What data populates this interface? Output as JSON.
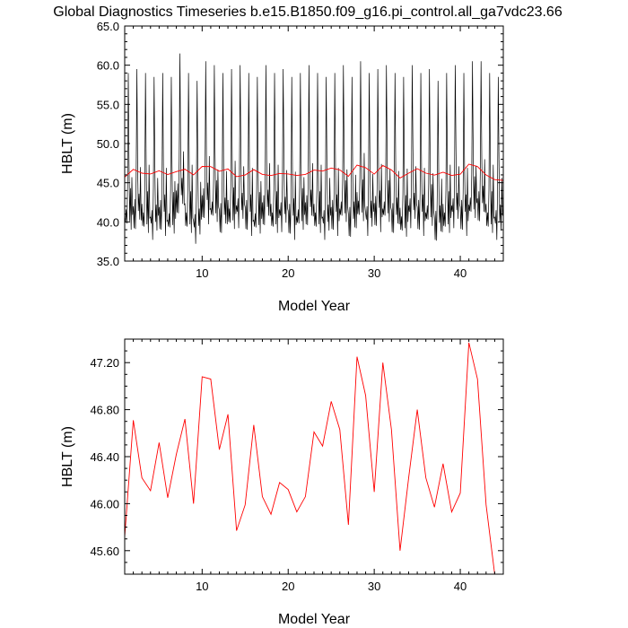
{
  "title": "Global Diagnostics Timeseries b.e15.B1850.f09_g16.pi_control.all_ga7vdc23.66",
  "colors": {
    "monthly": "#000000",
    "annual": "#ff0000",
    "frame": "#000000"
  },
  "chart_data": [
    {
      "type": "line",
      "xlabel": "Model Year",
      "ylabel": "HBLT (m)",
      "xlim": [
        1,
        45
      ],
      "ylim": [
        35.0,
        65.0
      ],
      "xticks": [
        10,
        20,
        30,
        40
      ],
      "xtick_labels": [
        "10",
        "20",
        "30",
        "40"
      ],
      "yticks": [
        35,
        40,
        45,
        50,
        55,
        60,
        65
      ],
      "ytick_labels": [
        "35.0",
        "40.0",
        "45.0",
        "50.0",
        "55.0",
        "60.0",
        "65.0"
      ],
      "grid": false,
      "series": [
        {
          "style": "monthly",
          "color": "#000000",
          "x_start": 1.0,
          "x_step": 0.08333,
          "seasonal_shape": [
            -3,
            -5,
            -2.5,
            -5.5,
            0,
            14.5,
            3,
            -4,
            -1,
            -5.5,
            2,
            -4
          ],
          "annual_peaks": [
            59,
            59.5,
            59,
            58.5,
            59,
            58.5,
            61.5,
            59,
            58,
            60.5,
            60,
            59,
            59.5,
            60,
            59,
            58.5,
            60,
            59,
            59.5,
            58.5,
            59,
            60,
            59,
            58.5,
            59,
            60,
            58.5,
            60.5,
            59,
            59.5,
            60,
            59,
            58.5,
            60,
            59,
            59.5,
            58,
            59,
            60,
            59,
            60.5,
            60.5,
            59,
            58.5,
            59
          ]
        },
        {
          "style": "annual",
          "color": "#ff0000",
          "x": [
            1,
            2,
            3,
            4,
            5,
            6,
            7,
            8,
            9,
            10,
            11,
            12,
            13,
            14,
            15,
            16,
            17,
            18,
            19,
            20,
            21,
            22,
            23,
            24,
            25,
            26,
            27,
            28,
            29,
            30,
            31,
            32,
            33,
            34,
            35,
            36,
            37,
            38,
            39,
            40,
            41,
            42,
            43,
            44,
            45
          ],
          "values": [
            45.72,
            46.71,
            46.22,
            46.11,
            46.52,
            46.05,
            46.42,
            46.72,
            46.0,
            47.08,
            47.06,
            46.46,
            46.76,
            45.77,
            45.99,
            46.67,
            46.06,
            45.91,
            46.18,
            46.12,
            45.93,
            46.06,
            46.61,
            46.49,
            46.87,
            46.63,
            45.82,
            47.25,
            46.92,
            46.1,
            47.2,
            46.63,
            45.6,
            46.22,
            46.8,
            46.22,
            45.97,
            46.34,
            45.93,
            46.09,
            47.37,
            47.06,
            45.99,
            45.4,
            45.3
          ]
        }
      ]
    },
    {
      "type": "line",
      "xlabel": "Model Year",
      "ylabel": "HBLT (m)",
      "xlim": [
        1,
        45
      ],
      "ylim": [
        45.4,
        47.4
      ],
      "xticks": [
        10,
        20,
        30,
        40
      ],
      "xtick_labels": [
        "10",
        "20",
        "30",
        "40"
      ],
      "yticks": [
        45.6,
        46.0,
        46.4,
        46.8,
        47.2
      ],
      "ytick_labels": [
        "45.60",
        "46.00",
        "46.40",
        "46.80",
        "47.20"
      ],
      "grid": false,
      "series": [
        {
          "style": "annual",
          "color": "#ff0000",
          "x": [
            1,
            2,
            3,
            4,
            5,
            6,
            7,
            8,
            9,
            10,
            11,
            12,
            13,
            14,
            15,
            16,
            17,
            18,
            19,
            20,
            21,
            22,
            23,
            24,
            25,
            26,
            27,
            28,
            29,
            30,
            31,
            32,
            33,
            34,
            35,
            36,
            37,
            38,
            39,
            40,
            41,
            42,
            43,
            44,
            45
          ],
          "values": [
            45.72,
            46.71,
            46.22,
            46.11,
            46.52,
            46.05,
            46.42,
            46.72,
            46.0,
            47.08,
            47.06,
            46.46,
            46.76,
            45.77,
            45.99,
            46.67,
            46.06,
            45.91,
            46.18,
            46.12,
            45.93,
            46.06,
            46.61,
            46.49,
            46.87,
            46.63,
            45.82,
            47.25,
            46.92,
            46.1,
            47.2,
            46.63,
            45.6,
            46.22,
            46.8,
            46.22,
            45.97,
            46.34,
            45.93,
            46.09,
            47.37,
            47.06,
            45.99,
            45.4,
            45.3
          ]
        }
      ]
    }
  ]
}
